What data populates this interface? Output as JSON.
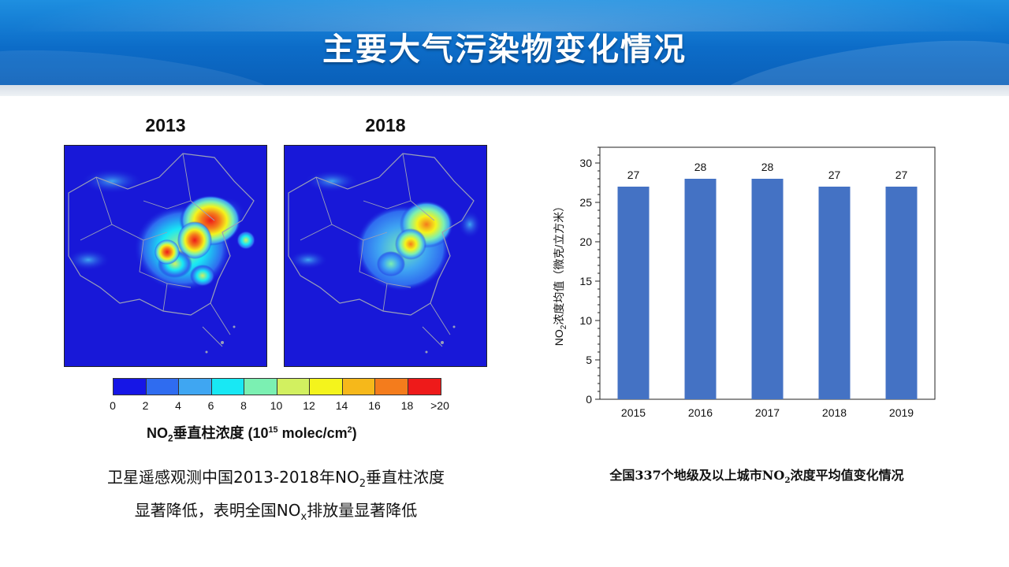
{
  "page": {
    "title": "主要大气污染物变化情况"
  },
  "maps": {
    "years": [
      "2013",
      "2018"
    ],
    "legend": {
      "ticks": [
        "0",
        "2",
        "4",
        "6",
        "8",
        "10",
        "12",
        "14",
        "16",
        "18",
        ">20"
      ],
      "colors": [
        "#1616e6",
        "#2f6cf0",
        "#3fa6f2",
        "#18e8f4",
        "#7bf0b2",
        "#d2f060",
        "#f4f41c",
        "#f6b81a",
        "#f47c1c",
        "#ee1a1a"
      ],
      "title_prefix": "NO",
      "title_sub": "2",
      "title_mid": "垂直柱浓度 (10",
      "title_sup1": "15",
      "title_end": " molec/cm",
      "title_sup2": "2",
      "title_close": ")"
    }
  },
  "captions": {
    "left_line1_a": "卫星遥感观测中国2013-2018年NO",
    "left_line1_sub": "2",
    "left_line1_b": "垂直柱浓度",
    "left_line2_a": "显著降低，表明全国NO",
    "left_line2_sub": "x",
    "left_line2_b": "排放量显著降低",
    "right_a": "全国337个地级及以上城市NO",
    "right_sub": "2",
    "right_b": "浓度平均值变化情况"
  },
  "chart_data": {
    "type": "bar",
    "categories": [
      "2015",
      "2016",
      "2017",
      "2018",
      "2019"
    ],
    "values": [
      27,
      28,
      28,
      27,
      27
    ],
    "data_labels": [
      "27",
      "28",
      "28",
      "27",
      "27"
    ],
    "ylim": [
      0,
      32
    ],
    "yticks": [
      "0",
      "5",
      "10",
      "15",
      "20",
      "25",
      "30"
    ],
    "ylabel_prefix": "NO",
    "ylabel_sub": "2",
    "ylabel_rest": "浓度均值（微克/立方米）",
    "xlabel": "",
    "bar_color": "#4472c4",
    "grid": false,
    "legend": "none"
  }
}
